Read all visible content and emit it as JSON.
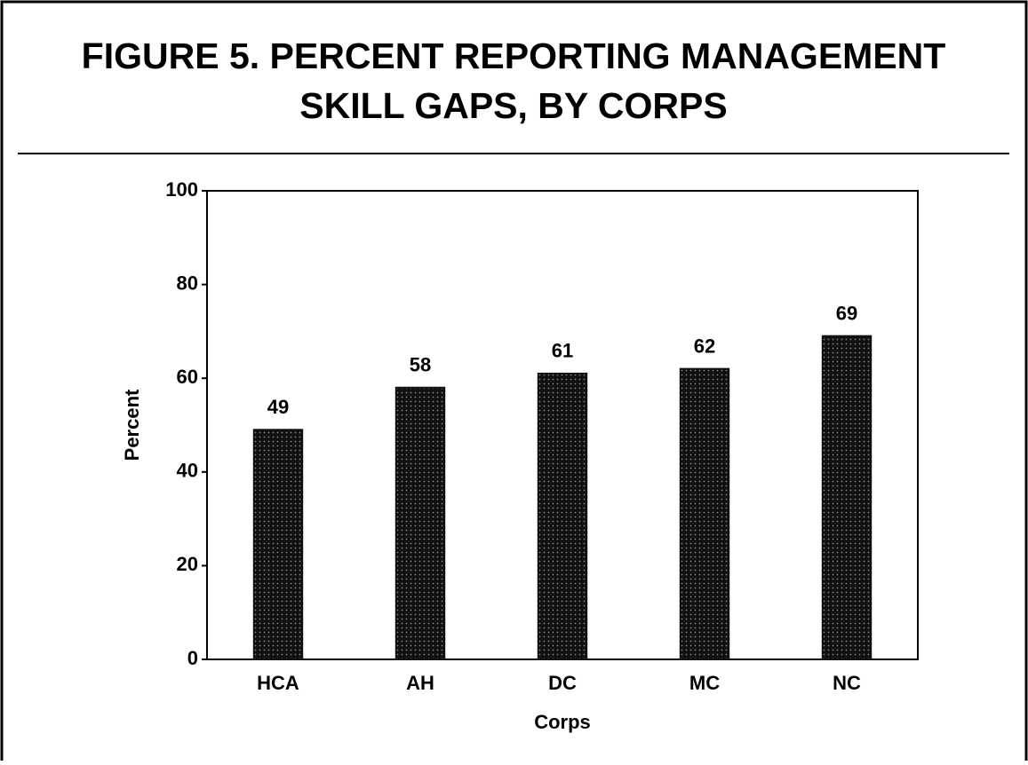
{
  "chart_data": {
    "type": "bar",
    "title": [
      "FIGURE 5.  PERCENT REPORTING MANAGEMENT",
      "SKILL GAPS, BY CORPS"
    ],
    "categories": [
      "HCA",
      "AH",
      "DC",
      "MC",
      "NC"
    ],
    "values": [
      49,
      58,
      61,
      62,
      69
    ],
    "color": "#111111",
    "x_label": "Corps",
    "y_label": "Percent",
    "ylim": [
      0,
      100
    ],
    "yticks": [
      0,
      20,
      40,
      60,
      80,
      100
    ],
    "grid": false
  }
}
